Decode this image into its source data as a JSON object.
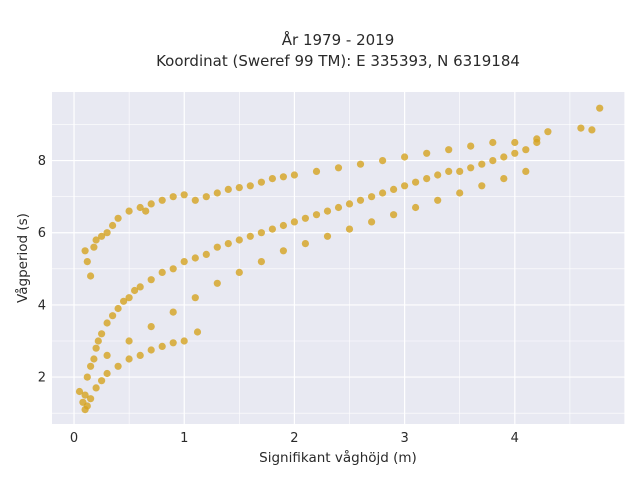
{
  "chart_data": {
    "type": "scatter",
    "title": "År 1979 - 2019",
    "subtitle": "Koordinat (Sweref 99 TM): E 335393, N 6319184",
    "xlabel": "Signifikant våghöjd (m)",
    "ylabel": "Vågperiod (s)",
    "xlim": [
      -0.2,
      5.0
    ],
    "ylim": [
      0.7,
      9.9
    ],
    "xticks": [
      0,
      1,
      2,
      3,
      4
    ],
    "yticks": [
      2,
      4,
      6,
      8
    ],
    "grid": true,
    "legend": "none",
    "colors": {
      "marker": "#d4a21f",
      "plot_bg": "#e8e9f2",
      "grid": "#ffffff"
    },
    "x": [
      0.05,
      0.08,
      0.1,
      0.12,
      0.15,
      0.18,
      0.2,
      0.22,
      0.25,
      0.3,
      0.35,
      0.4,
      0.45,
      0.5,
      0.55,
      0.6,
      0.7,
      0.8,
      0.9,
      1.0,
      1.1,
      1.2,
      1.3,
      1.4,
      1.5,
      1.6,
      1.7,
      1.8,
      1.9,
      2.0,
      2.1,
      2.2,
      2.3,
      2.4,
      2.5,
      2.6,
      2.7,
      2.8,
      2.9,
      3.0,
      3.1,
      3.2,
      3.3,
      3.4,
      3.5,
      3.6,
      3.7,
      3.8,
      3.9,
      4.0,
      4.1,
      4.2,
      4.3,
      4.6,
      4.7,
      4.77,
      0.1,
      0.12,
      0.15,
      0.2,
      0.25,
      0.3,
      0.4,
      0.5,
      0.6,
      0.7,
      0.8,
      0.9,
      1.0,
      1.12,
      0.1,
      0.12,
      0.15,
      0.18,
      0.2,
      0.25,
      0.3,
      0.35,
      0.4,
      0.5,
      0.6,
      0.65,
      0.7,
      0.8,
      0.9,
      1.0,
      1.1,
      1.2,
      1.3,
      1.4,
      1.5,
      1.6,
      1.7,
      1.8,
      1.9,
      2.0,
      2.2,
      2.4,
      2.6,
      2.8,
      3.0,
      3.2,
      3.4,
      3.6,
      3.8,
      4.0,
      4.2,
      0.3,
      0.5,
      0.7,
      0.9,
      1.1,
      1.3,
      1.5,
      1.7,
      1.9,
      2.1,
      2.3,
      2.5,
      2.7,
      2.9,
      3.1,
      3.3,
      3.5,
      3.7,
      3.9,
      4.1
    ],
    "y": [
      1.6,
      1.3,
      1.5,
      2.0,
      2.3,
      2.5,
      2.8,
      3.0,
      3.2,
      3.5,
      3.7,
      3.9,
      4.1,
      4.2,
      4.4,
      4.5,
      4.7,
      4.9,
      5.0,
      5.2,
      5.3,
      5.4,
      5.6,
      5.7,
      5.8,
      5.9,
      6.0,
      6.1,
      6.2,
      6.3,
      6.4,
      6.5,
      6.6,
      6.7,
      6.8,
      6.9,
      7.0,
      7.1,
      7.2,
      7.3,
      7.4,
      7.5,
      7.6,
      7.7,
      7.7,
      7.8,
      7.9,
      8.0,
      8.1,
      8.2,
      8.3,
      8.5,
      8.8,
      8.9,
      8.85,
      9.45,
      1.1,
      1.2,
      1.4,
      1.7,
      1.9,
      2.1,
      2.3,
      2.5,
      2.6,
      2.75,
      2.85,
      2.95,
      3.0,
      3.25,
      5.5,
      5.2,
      4.8,
      5.6,
      5.8,
      5.9,
      6.0,
      6.2,
      6.4,
      6.6,
      6.7,
      6.6,
      6.8,
      6.9,
      7.0,
      7.05,
      6.9,
      7.0,
      7.1,
      7.2,
      7.25,
      7.3,
      7.4,
      7.5,
      7.55,
      7.6,
      7.7,
      7.8,
      7.9,
      8.0,
      8.1,
      8.2,
      8.3,
      8.4,
      8.5,
      8.5,
      8.6,
      2.6,
      3.0,
      3.4,
      3.8,
      4.2,
      4.6,
      4.9,
      5.2,
      5.5,
      5.7,
      5.9,
      6.1,
      6.3,
      6.5,
      6.7,
      6.9,
      7.1,
      7.3,
      7.5,
      7.7
    ]
  }
}
